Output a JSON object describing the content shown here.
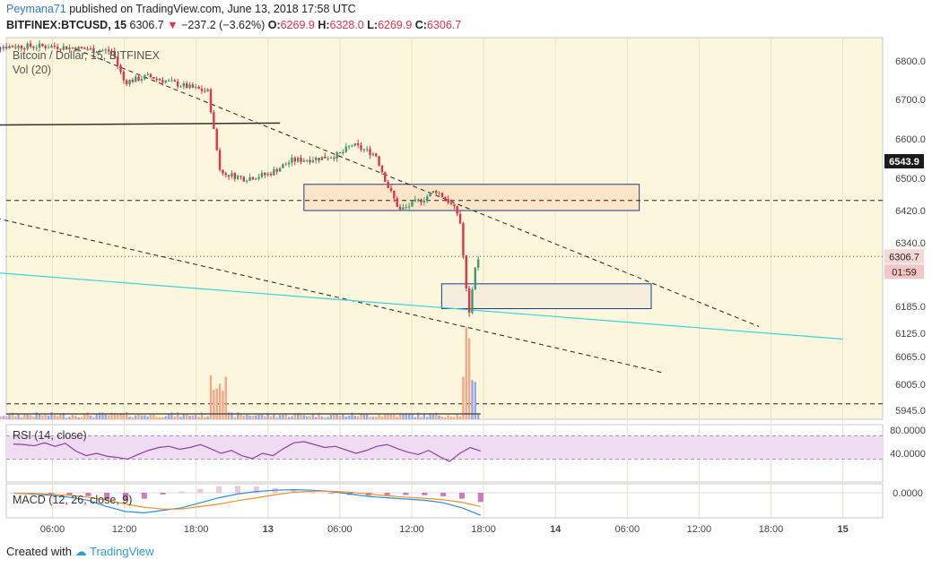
{
  "header": {
    "author": "Peymana71",
    "published_text": "published on TradingView.com, June 13, 2018 17:58 UTC",
    "symbol": "BITFINEX:BTCUSD, 15",
    "last": "6306.7",
    "change": "−237.2 (−3.62%)",
    "open_label": "O:",
    "open": "6269.9",
    "high_label": "H:",
    "high": "6328.0",
    "low_label": "L:",
    "low": "6269.9",
    "close_label": "C:",
    "close": "6306.7"
  },
  "footer": {
    "created_with": "Created with",
    "brand": "TradingView"
  },
  "colors": {
    "up": "#3d9970",
    "down": "#e0324a",
    "bg": "#fbf6dc",
    "rsi_band": "#f0dcf2",
    "cyan": "#3fd0e0",
    "box_fill": "#fde6c8",
    "box_border": "#1f3a8a"
  },
  "chart_data": [
    {
      "type": "candlestick",
      "title": "Bitcoin / Dollar, 15, BITFINEX",
      "indicator": "Vol (20)",
      "y_ticks": [
        "6800.0",
        "6700.0",
        "6600.0",
        "6500.0",
        "6420.0",
        "6340.0",
        "6185.0",
        "6125.0",
        "6065.0",
        "6005.0",
        "5945.0"
      ],
      "x_ticks": [
        "06:00",
        "12:00",
        "18:00",
        "13",
        "06:00",
        "12:00",
        "18:00",
        "14",
        "06:00",
        "12:00",
        "18:00",
        "15"
      ],
      "price_labels": {
        "current": "6306.7",
        "countdown": "01:59",
        "marker": "6543.9"
      },
      "close_path": [
        [
          "06-12 00:00",
          6838
        ],
        [
          "06-12 06:00",
          6838
        ],
        [
          "06-12 11:00",
          6825
        ],
        [
          "06-12 12:00",
          6745
        ],
        [
          "06-12 14:00",
          6760
        ],
        [
          "06-12 17:00",
          6735
        ],
        [
          "06-12 19:00",
          6720
        ],
        [
          "06-12 20:00",
          6515
        ],
        [
          "06-12 22:00",
          6500
        ],
        [
          "06-13 00:00",
          6510
        ],
        [
          "06-13 02:00",
          6545
        ],
        [
          "06-13 04:00",
          6550
        ],
        [
          "06-13 06:00",
          6560
        ],
        [
          "06-13 07:00",
          6585
        ],
        [
          "06-13 09:00",
          6560
        ],
        [
          "06-13 10:00",
          6480
        ],
        [
          "06-13 11:00",
          6420
        ],
        [
          "06-13 13:00",
          6450
        ],
        [
          "06-13 14:00",
          6470
        ],
        [
          "06-13 15:00",
          6445
        ],
        [
          "06-13 16:00",
          6405
        ],
        [
          "06-13 16:30",
          6245
        ],
        [
          "06-13 16:45",
          6150
        ],
        [
          "06-13 17:15",
          6280
        ],
        [
          "06-13 17:45",
          6306.7
        ]
      ],
      "annotations": {
        "resistance_box": [
          6420,
          6485
        ],
        "support_box": [
          6180,
          6240
        ],
        "horizontal_levels": [
          6445,
          5960
        ],
        "trendline_top": {
          "from": [
            "06-12 08:00",
            6830
          ],
          "to": [
            "06-14 17:00",
            6140
          ]
        },
        "trendline_mid": {
          "from": [
            "06-12 00:00",
            6410
          ],
          "to": [
            "06-14 09:00",
            6030
          ]
        },
        "trendline_black": {
          "from": [
            "06-12 00:00",
            6635
          ],
          "to": [
            "06-13 01:00",
            6640
          ]
        },
        "trendline_cyan": {
          "from": [
            "06-12 00:00",
            6270
          ],
          "to": [
            "06-15 00:00",
            6110
          ]
        }
      }
    },
    {
      "type": "line",
      "title": "RSI (14, close)",
      "y_ticks": [
        "80.0000",
        "40.0000"
      ],
      "bands": [
        30,
        70
      ],
      "values": [
        56,
        55,
        53,
        58,
        52,
        57,
        44,
        36,
        40,
        35,
        33,
        30,
        38,
        45,
        50,
        52,
        47,
        50,
        55,
        48,
        40,
        45,
        36,
        31,
        40,
        36,
        48,
        58,
        60,
        55,
        50,
        52,
        46,
        40,
        45,
        52,
        55,
        48,
        42,
        38,
        45,
        35,
        26,
        40,
        50,
        44
      ]
    },
    {
      "type": "line",
      "title": "MACD (12, 26, close, 9)",
      "y_ticks": [
        "0.0000"
      ],
      "series": [
        {
          "name": "",
          "values": [
            -2,
            -5,
            -10,
            -18,
            -30,
            -55,
            -75,
            -80,
            -70,
            -60,
            -40,
            -20,
            -5,
            5,
            10,
            12,
            10,
            5,
            -5,
            -15,
            -20,
            -25,
            -30,
            -40,
            -60,
            -90
          ]
        },
        {
          "name": "",
          "values": [
            -2,
            -3,
            -6,
            -10,
            -18,
            -30,
            -45,
            -58,
            -65,
            -65,
            -55,
            -45,
            -32,
            -20,
            -8,
            2,
            6,
            6,
            2,
            -5,
            -12,
            -18,
            -22,
            -28,
            -38,
            -55
          ]
        }
      ]
    }
  ]
}
